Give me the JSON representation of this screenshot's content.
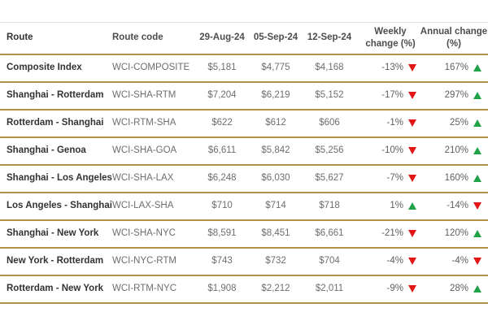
{
  "chart_data": {
    "type": "table",
    "columns": {
      "route": "Route",
      "code": "Route code",
      "d1": "29-Aug-24",
      "d2": "05-Sep-24",
      "d3": "12-Sep-24",
      "weekly": "Weekly change (%)",
      "annual": "Annual change (%)"
    },
    "rows": [
      {
        "route": "Composite Index",
        "code": "WCI-COMPOSITE",
        "prices": [
          "$5,181",
          "$4,775",
          "$4,168"
        ],
        "weekly": "-13%",
        "weekly_dir": "down",
        "annual": "167%",
        "annual_dir": "up"
      },
      {
        "route": "Shanghai - Rotterdam",
        "code": "WCI-SHA-RTM",
        "prices": [
          "$7,204",
          "$6,219",
          "$5,152"
        ],
        "weekly": "-17%",
        "weekly_dir": "down",
        "annual": "297%",
        "annual_dir": "up"
      },
      {
        "route": "Rotterdam - Shanghai",
        "code": "WCI-RTM-SHA",
        "prices": [
          "$622",
          "$612",
          "$606"
        ],
        "weekly": "-1%",
        "weekly_dir": "down",
        "annual": "25%",
        "annual_dir": "up"
      },
      {
        "route": "Shanghai - Genoa",
        "code": "WCI-SHA-GOA",
        "prices": [
          "$6,611",
          "$5,842",
          "$5,256"
        ],
        "weekly": "-10%",
        "weekly_dir": "down",
        "annual": "210%",
        "annual_dir": "up"
      },
      {
        "route": "Shanghai - Los Angeles",
        "code": "WCI-SHA-LAX",
        "prices": [
          "$6,248",
          "$6,030",
          "$5,627"
        ],
        "weekly": "-7%",
        "weekly_dir": "down",
        "annual": "160%",
        "annual_dir": "up"
      },
      {
        "route": "Los Angeles - Shanghai",
        "code": "WCI-LAX-SHA",
        "prices": [
          "$710",
          "$714",
          "$718"
        ],
        "weekly": "1%",
        "weekly_dir": "up",
        "annual": "-14%",
        "annual_dir": "down"
      },
      {
        "route": "Shanghai - New York",
        "code": "WCI-SHA-NYC",
        "prices": [
          "$8,591",
          "$8,451",
          "$6,661"
        ],
        "weekly": "-21%",
        "weekly_dir": "down",
        "annual": "120%",
        "annual_dir": "up"
      },
      {
        "route": "New York - Rotterdam",
        "code": "WCI-NYC-RTM",
        "prices": [
          "$743",
          "$732",
          "$704"
        ],
        "weekly": "-4%",
        "weekly_dir": "down",
        "annual": "-4%",
        "annual_dir": "down"
      },
      {
        "route": "Rotterdam - New York",
        "code": "WCI-RTM-NYC",
        "prices": [
          "$1,908",
          "$2,212",
          "$2,011"
        ],
        "weekly": "-9%",
        "weekly_dir": "down",
        "annual": "28%",
        "annual_dir": "up"
      }
    ]
  },
  "colors": {
    "trend_up": "#21a148",
    "trend_down": "#e31515",
    "row_border": "#b49245",
    "header_text": "#4d4d4d",
    "route_text": "#333333",
    "value_text": "#6e6e6e"
  }
}
